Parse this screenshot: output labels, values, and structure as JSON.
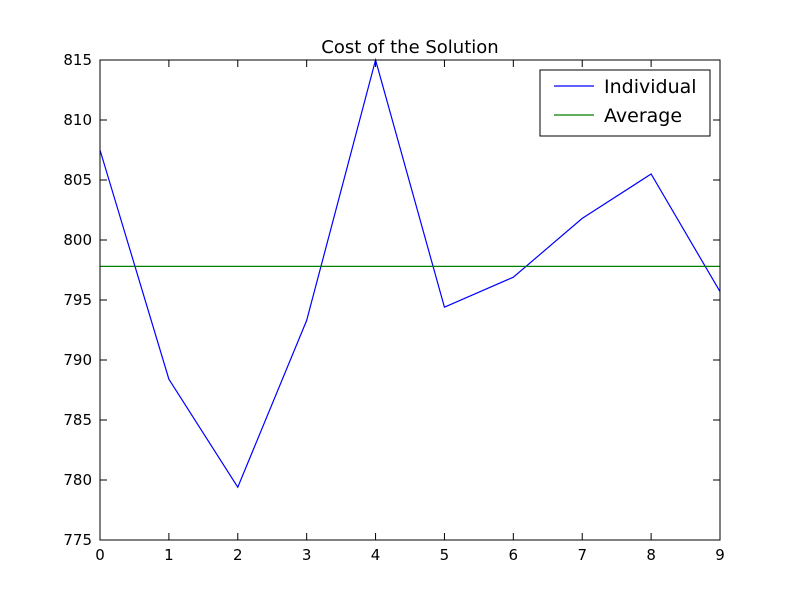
{
  "chart_data": {
    "type": "line",
    "title": "Cost of the Solution",
    "xlabel": "",
    "ylabel": "",
    "x": [
      0,
      1,
      2,
      3,
      4,
      5,
      6,
      7,
      8,
      9
    ],
    "xlim": [
      0,
      9
    ],
    "ylim": [
      775,
      815
    ],
    "xticks": [
      0,
      1,
      2,
      3,
      4,
      5,
      6,
      7,
      8,
      9
    ],
    "yticks": [
      775,
      780,
      785,
      790,
      795,
      800,
      805,
      810,
      815
    ],
    "grid": false,
    "legend_position": "top-right",
    "series": [
      {
        "name": "Individual",
        "color": "#0000ff",
        "values": [
          807.5,
          788.4,
          779.4,
          793.3,
          815.0,
          794.4,
          796.9,
          801.8,
          805.5,
          795.7
        ]
      },
      {
        "name": "Average",
        "color": "#008000",
        "values": [
          797.8,
          797.8,
          797.8,
          797.8,
          797.8,
          797.8,
          797.8,
          797.8,
          797.8,
          797.8
        ]
      }
    ]
  }
}
